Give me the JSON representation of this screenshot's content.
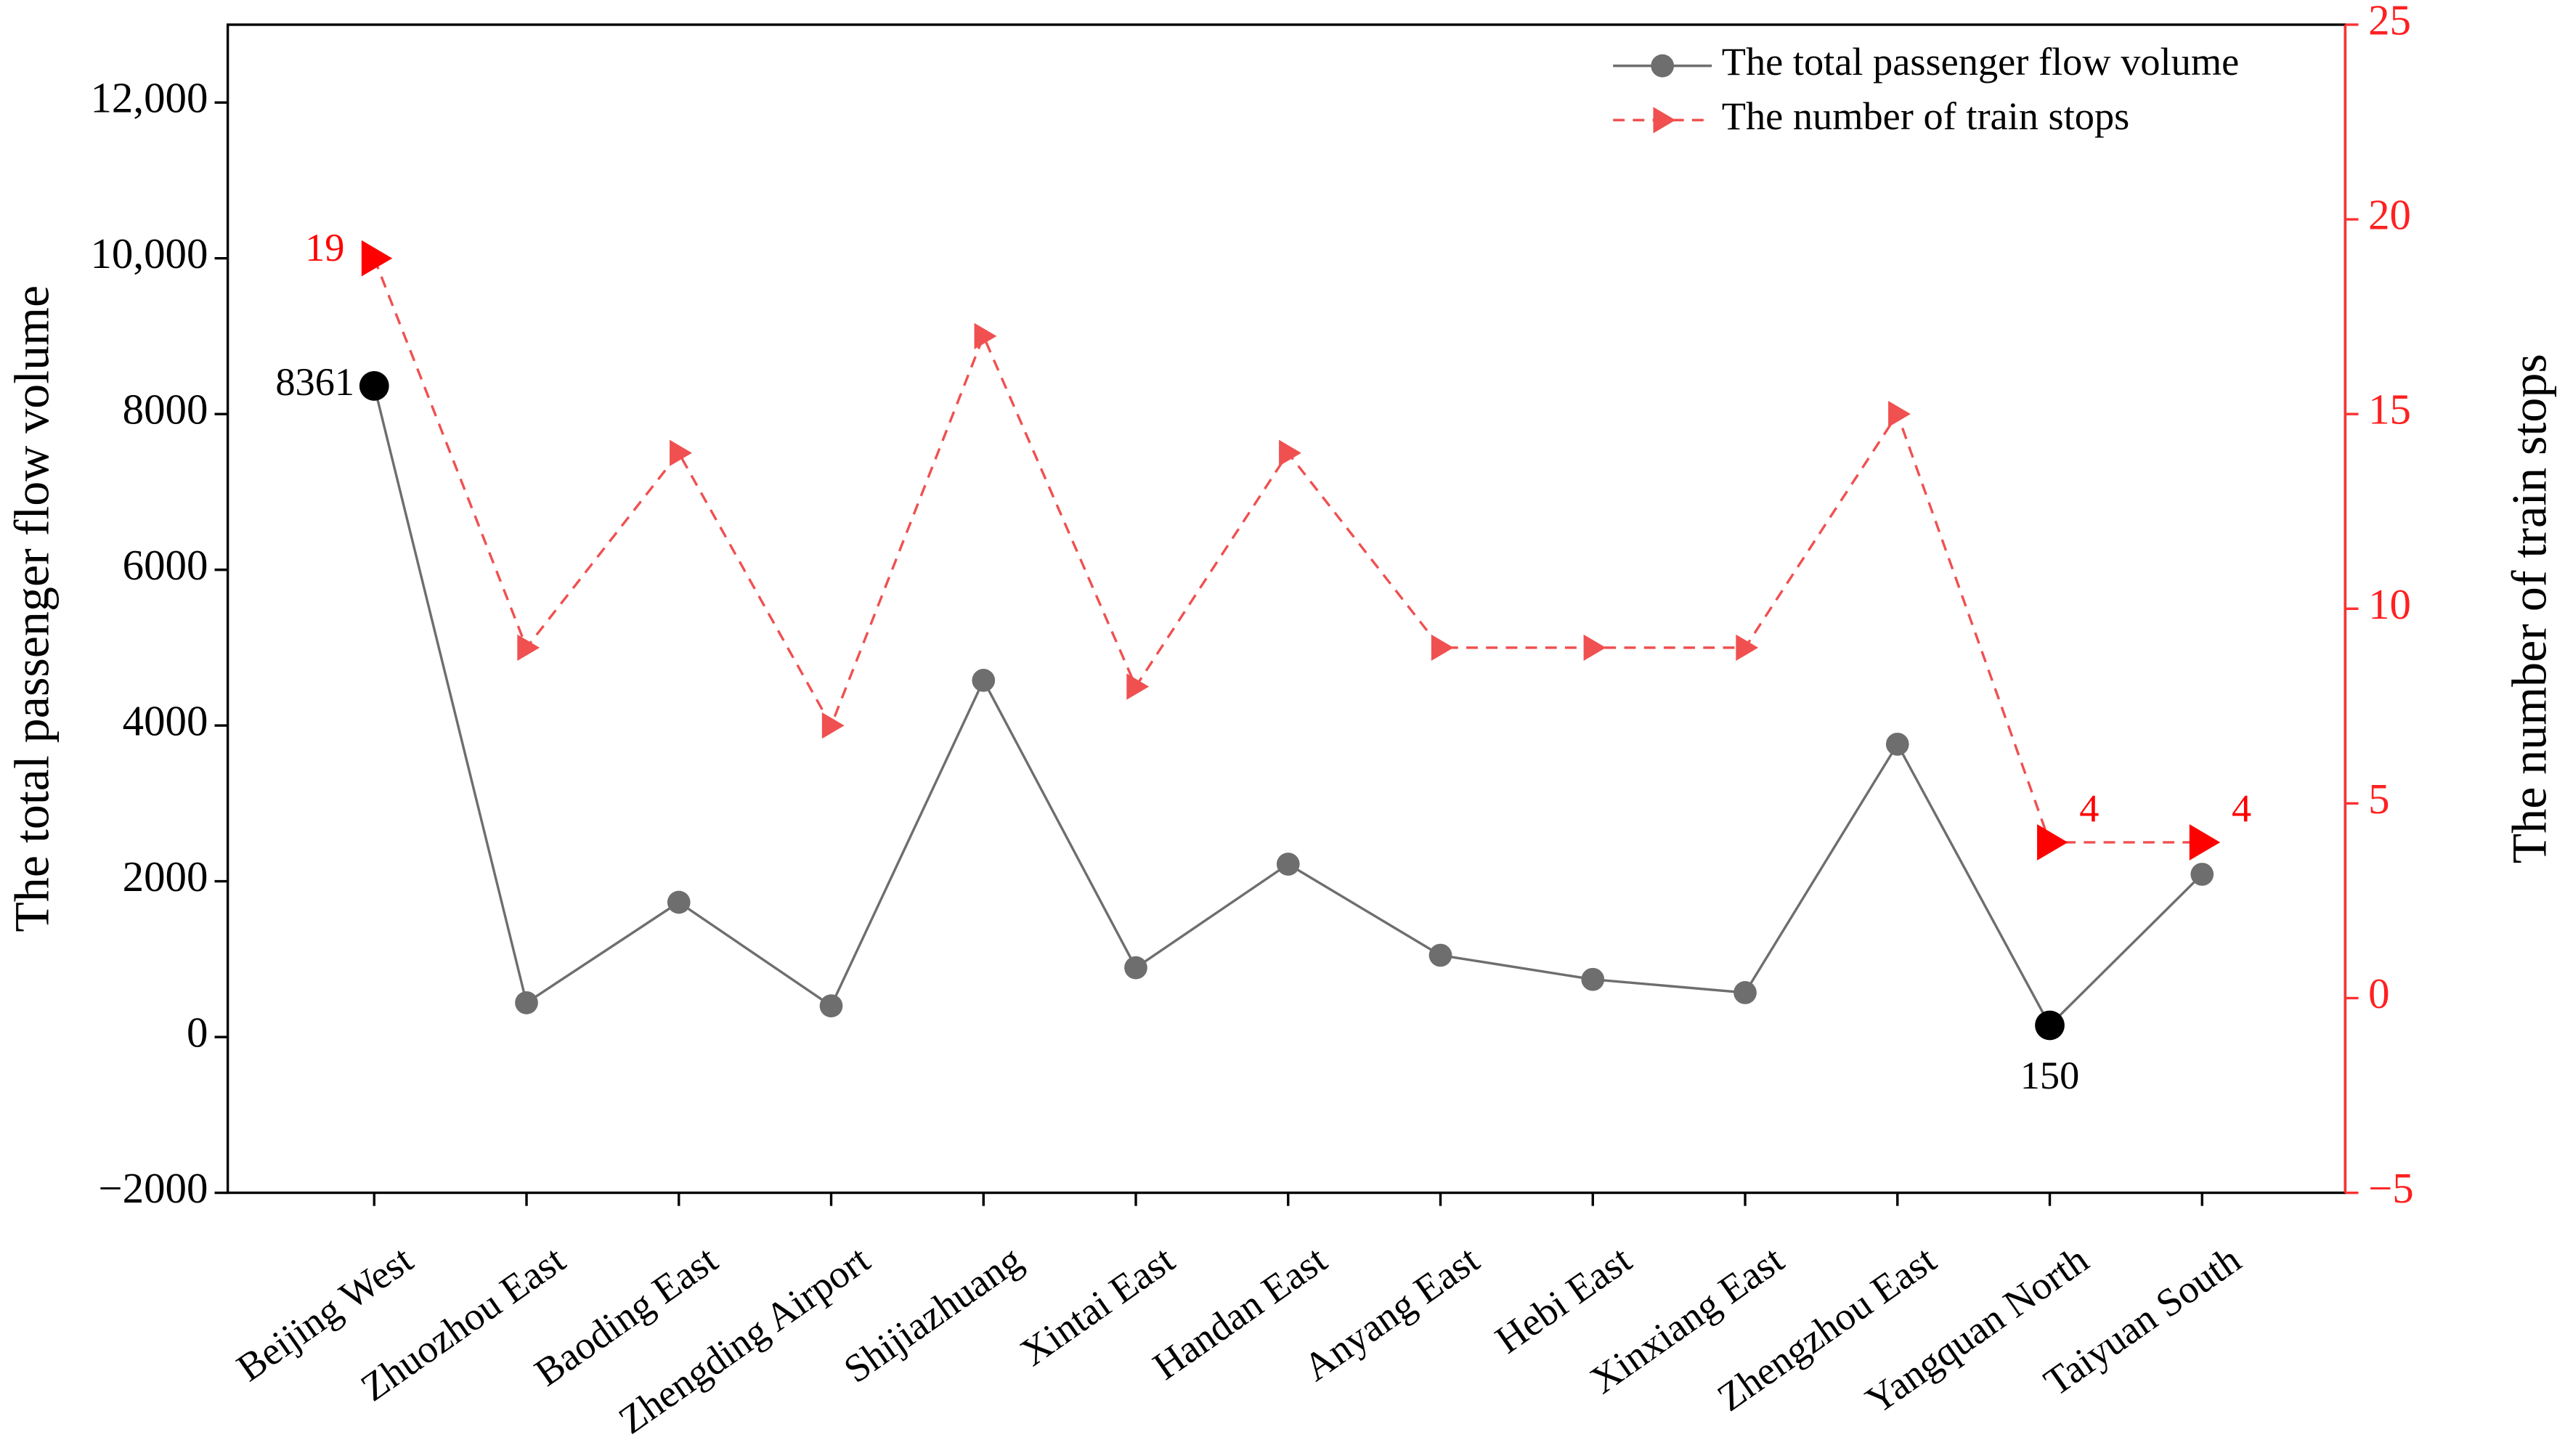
{
  "chart_data": {
    "type": "line",
    "categories": [
      "Beijing West",
      "Zhuozhou East",
      "Baoding East",
      "Zhengding Airport",
      "Shijiazhuang",
      "Xintai East",
      "Handan East",
      "Anyang East",
      "Hebi East",
      "Xinxiang East",
      "Zhengzhou East",
      "Yangquan North",
      "Taiyuan South"
    ],
    "y_label": "The total passenger flow volume",
    "y2_label": "The number of train stops",
    "ylim": [
      -2000,
      13000
    ],
    "yticks": [
      {
        "value": -2000,
        "label": "−2000"
      },
      0,
      2000,
      4000,
      6000,
      8000,
      {
        "value": 10000,
        "label": "10,000"
      },
      {
        "value": 12000,
        "label": "12,000"
      }
    ],
    "y2lim": [
      -5,
      25
    ],
    "y2ticks": [
      {
        "value": -5,
        "label": "−5"
      },
      0,
      5,
      10,
      15,
      20,
      25
    ],
    "legend": "upper right",
    "series": [
      {
        "name": "The total passenger flow volume",
        "color": "#6e6e6e",
        "highlight_color": "#000000",
        "values": [
          8361,
          440,
          1730,
          400,
          4580,
          890,
          2220,
          1050,
          740,
          570,
          3760,
          150,
          2090
        ],
        "value_labels": [
          "8361",
          null,
          null,
          null,
          null,
          null,
          null,
          null,
          null,
          null,
          null,
          "150",
          null
        ]
      },
      {
        "name": "The number of train stops",
        "color": "#f05050",
        "highlight_color": "#ff0000",
        "axis": "y2",
        "dashed": true,
        "values": [
          19,
          9,
          14,
          7,
          17,
          8,
          14,
          9,
          9,
          9,
          15,
          4,
          4
        ],
        "value_labels": [
          "19",
          null,
          null,
          null,
          null,
          null,
          null,
          null,
          null,
          null,
          null,
          "4",
          "4"
        ]
      }
    ]
  }
}
